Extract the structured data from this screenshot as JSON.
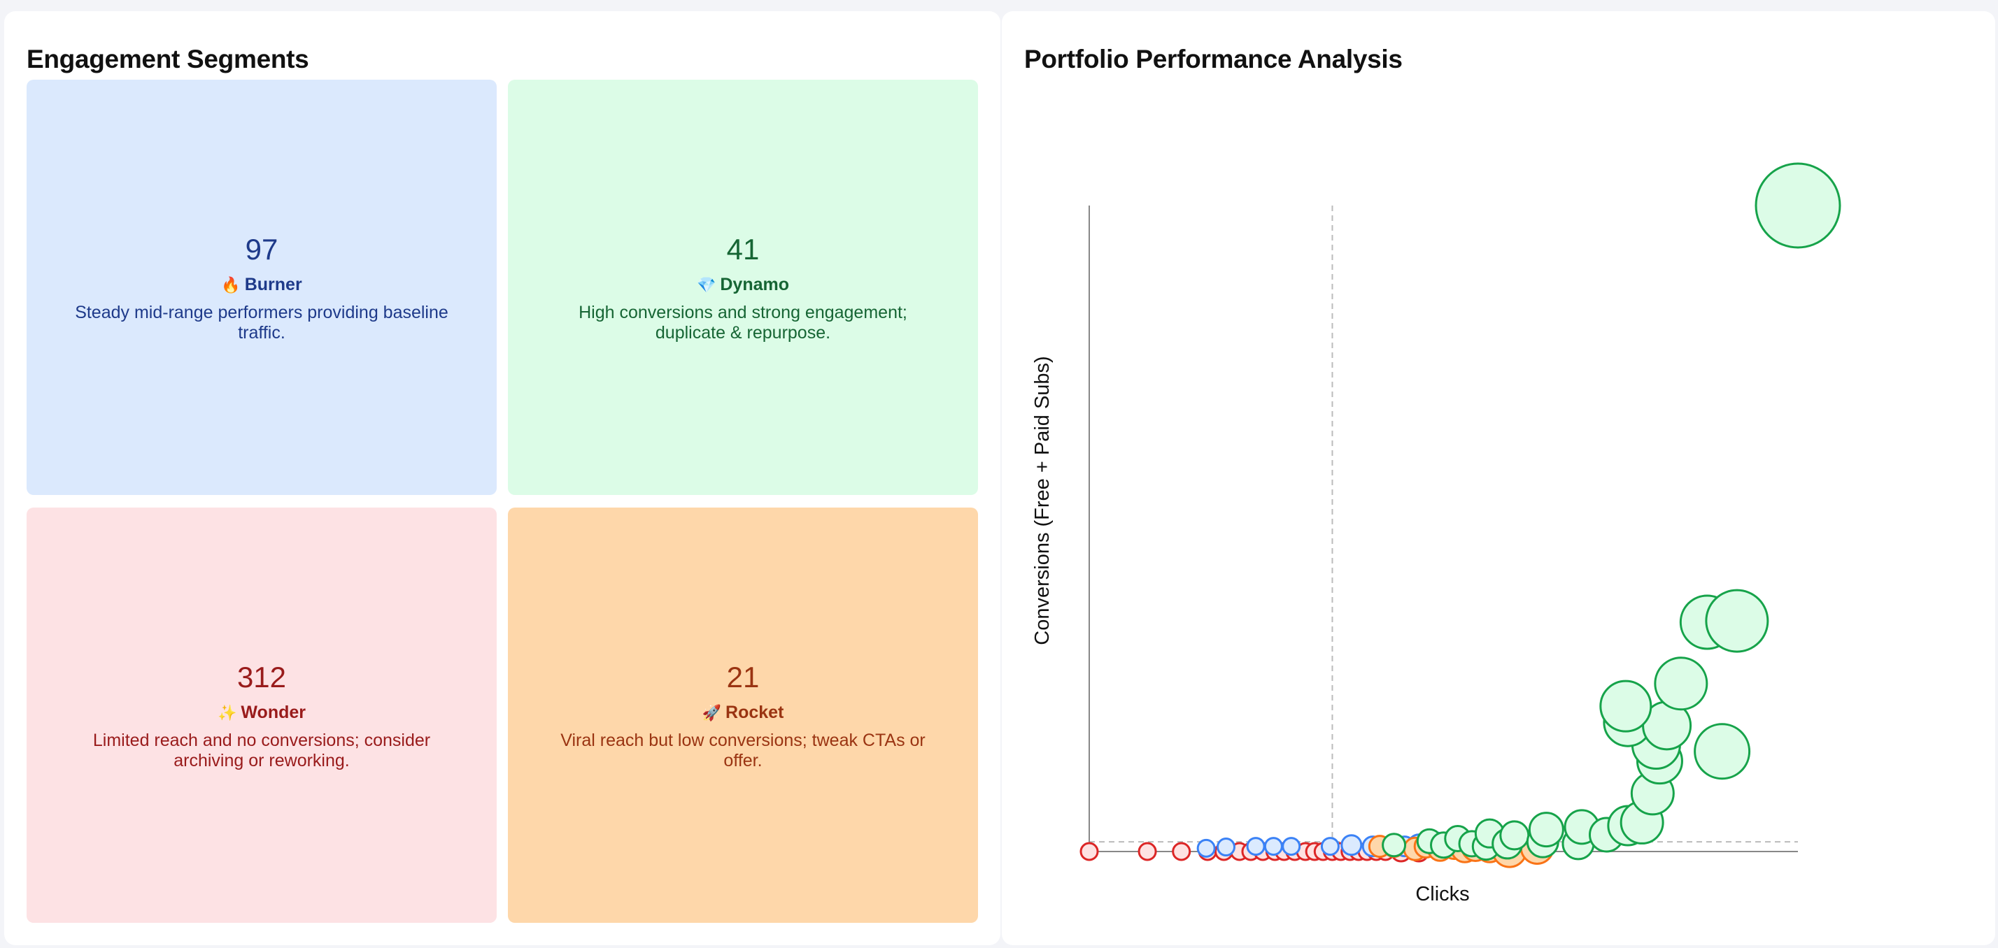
{
  "segments": {
    "title": "Engagement Segments",
    "items": [
      {
        "id": "burner",
        "count": "97",
        "emoji": "🔥",
        "name": "Burner",
        "desc": "Steady mid-range performers providing baseline traffic."
      },
      {
        "id": "dynamo",
        "count": "41",
        "emoji": "💎",
        "name": "Dynamo",
        "desc": "High conversions and strong engagement; duplicate & repurpose."
      },
      {
        "id": "wonder",
        "count": "312",
        "emoji": "✨",
        "name": "Wonder",
        "desc": "Limited reach and no conversions; consider archiving or reworking."
      },
      {
        "id": "rocket",
        "count": "21",
        "emoji": "🚀",
        "name": "Rocket",
        "desc": "Viral reach but low conversions; tweak CTAs or offer."
      }
    ]
  },
  "chart_data": {
    "type": "scatter",
    "title": "Portfolio Performance Analysis",
    "xlabel": "Clicks",
    "ylabel": "Conversions (Free + Paid Subs)",
    "xlim": [
      0,
      1000
    ],
    "ylim": [
      0,
      1000
    ],
    "x_threshold": 343,
    "y_threshold": 15,
    "grid": false,
    "colors": {
      "Burner": {
        "fill": "#dbeafe",
        "stroke": "#3b82f6"
      },
      "Dynamo": {
        "fill": "#dcfce7",
        "stroke": "#16a34a"
      },
      "Wonder": {
        "fill": "#fee2e2",
        "stroke": "#dc2626"
      },
      "Rocket": {
        "fill": "#fed7aa",
        "stroke": "#f97316"
      }
    },
    "series": [
      {
        "name": "Wonder",
        "points": [
          [
            0,
            0,
            12
          ],
          [
            82,
            0,
            12
          ],
          [
            130,
            0,
            12
          ],
          [
            167,
            0,
            12
          ],
          [
            190,
            0,
            12
          ],
          [
            212,
            0,
            12
          ],
          [
            228,
            0,
            12
          ],
          [
            245,
            0,
            12
          ],
          [
            262,
            0,
            12
          ],
          [
            275,
            0,
            12
          ],
          [
            290,
            0,
            12
          ],
          [
            305,
            0,
            12
          ],
          [
            318,
            0,
            12
          ],
          [
            330,
            0,
            12
          ],
          [
            343,
            0,
            12
          ],
          [
            355,
            0,
            12
          ],
          [
            368,
            0,
            12
          ],
          [
            380,
            0,
            12
          ],
          [
            392,
            0,
            12
          ],
          [
            405,
            0,
            12
          ],
          [
            418,
            0,
            12
          ],
          [
            440,
            0,
            14
          ],
          [
            465,
            0,
            14
          ]
        ]
      },
      {
        "name": "Burner",
        "points": [
          [
            165,
            5,
            12
          ],
          [
            193,
            7,
            12
          ],
          [
            235,
            8,
            12
          ],
          [
            260,
            8,
            12
          ],
          [
            285,
            8,
            12
          ],
          [
            340,
            8,
            12
          ],
          [
            370,
            10,
            14
          ],
          [
            400,
            8,
            14
          ],
          [
            445,
            8,
            14
          ],
          [
            465,
            10,
            15
          ],
          [
            490,
            12,
            16
          ],
          [
            538,
            10,
            17
          ],
          [
            575,
            12,
            18
          ],
          [
            690,
            12,
            21
          ]
        ]
      },
      {
        "name": "Rocket",
        "points": [
          [
            410,
            8,
            15
          ],
          [
            430,
            8,
            15
          ],
          [
            460,
            4,
            16
          ],
          [
            475,
            8,
            16
          ],
          [
            495,
            4,
            17
          ],
          [
            515,
            8,
            18
          ],
          [
            530,
            4,
            19
          ],
          [
            545,
            6,
            19
          ],
          [
            565,
            4,
            19
          ],
          [
            593,
            2,
            24
          ],
          [
            632,
            6,
            23
          ]
        ]
      },
      {
        "name": "Dynamo",
        "points": [
          [
            430,
            10,
            16
          ],
          [
            480,
            16,
            17
          ],
          [
            500,
            10,
            18
          ],
          [
            520,
            20,
            18
          ],
          [
            540,
            12,
            18
          ],
          [
            560,
            8,
            19
          ],
          [
            565,
            28,
            20
          ],
          [
            590,
            12,
            21
          ],
          [
            600,
            25,
            20
          ],
          [
            640,
            15,
            22
          ],
          [
            645,
            34,
            24
          ],
          [
            690,
            12,
            22
          ],
          [
            695,
            38,
            24
          ],
          [
            730,
            26,
            24
          ],
          [
            760,
            40,
            28
          ],
          [
            780,
            45,
            30
          ],
          [
            795,
            90,
            30
          ],
          [
            805,
            140,
            32
          ],
          [
            800,
            165,
            34
          ],
          [
            760,
            200,
            34
          ],
          [
            815,
            195,
            34
          ],
          [
            835,
            260,
            37
          ],
          [
            757,
            225,
            36
          ],
          [
            893,
            155,
            39
          ],
          [
            872,
            355,
            38
          ],
          [
            914,
            357,
            44
          ],
          [
            1000,
            1000,
            60
          ]
        ]
      }
    ]
  }
}
